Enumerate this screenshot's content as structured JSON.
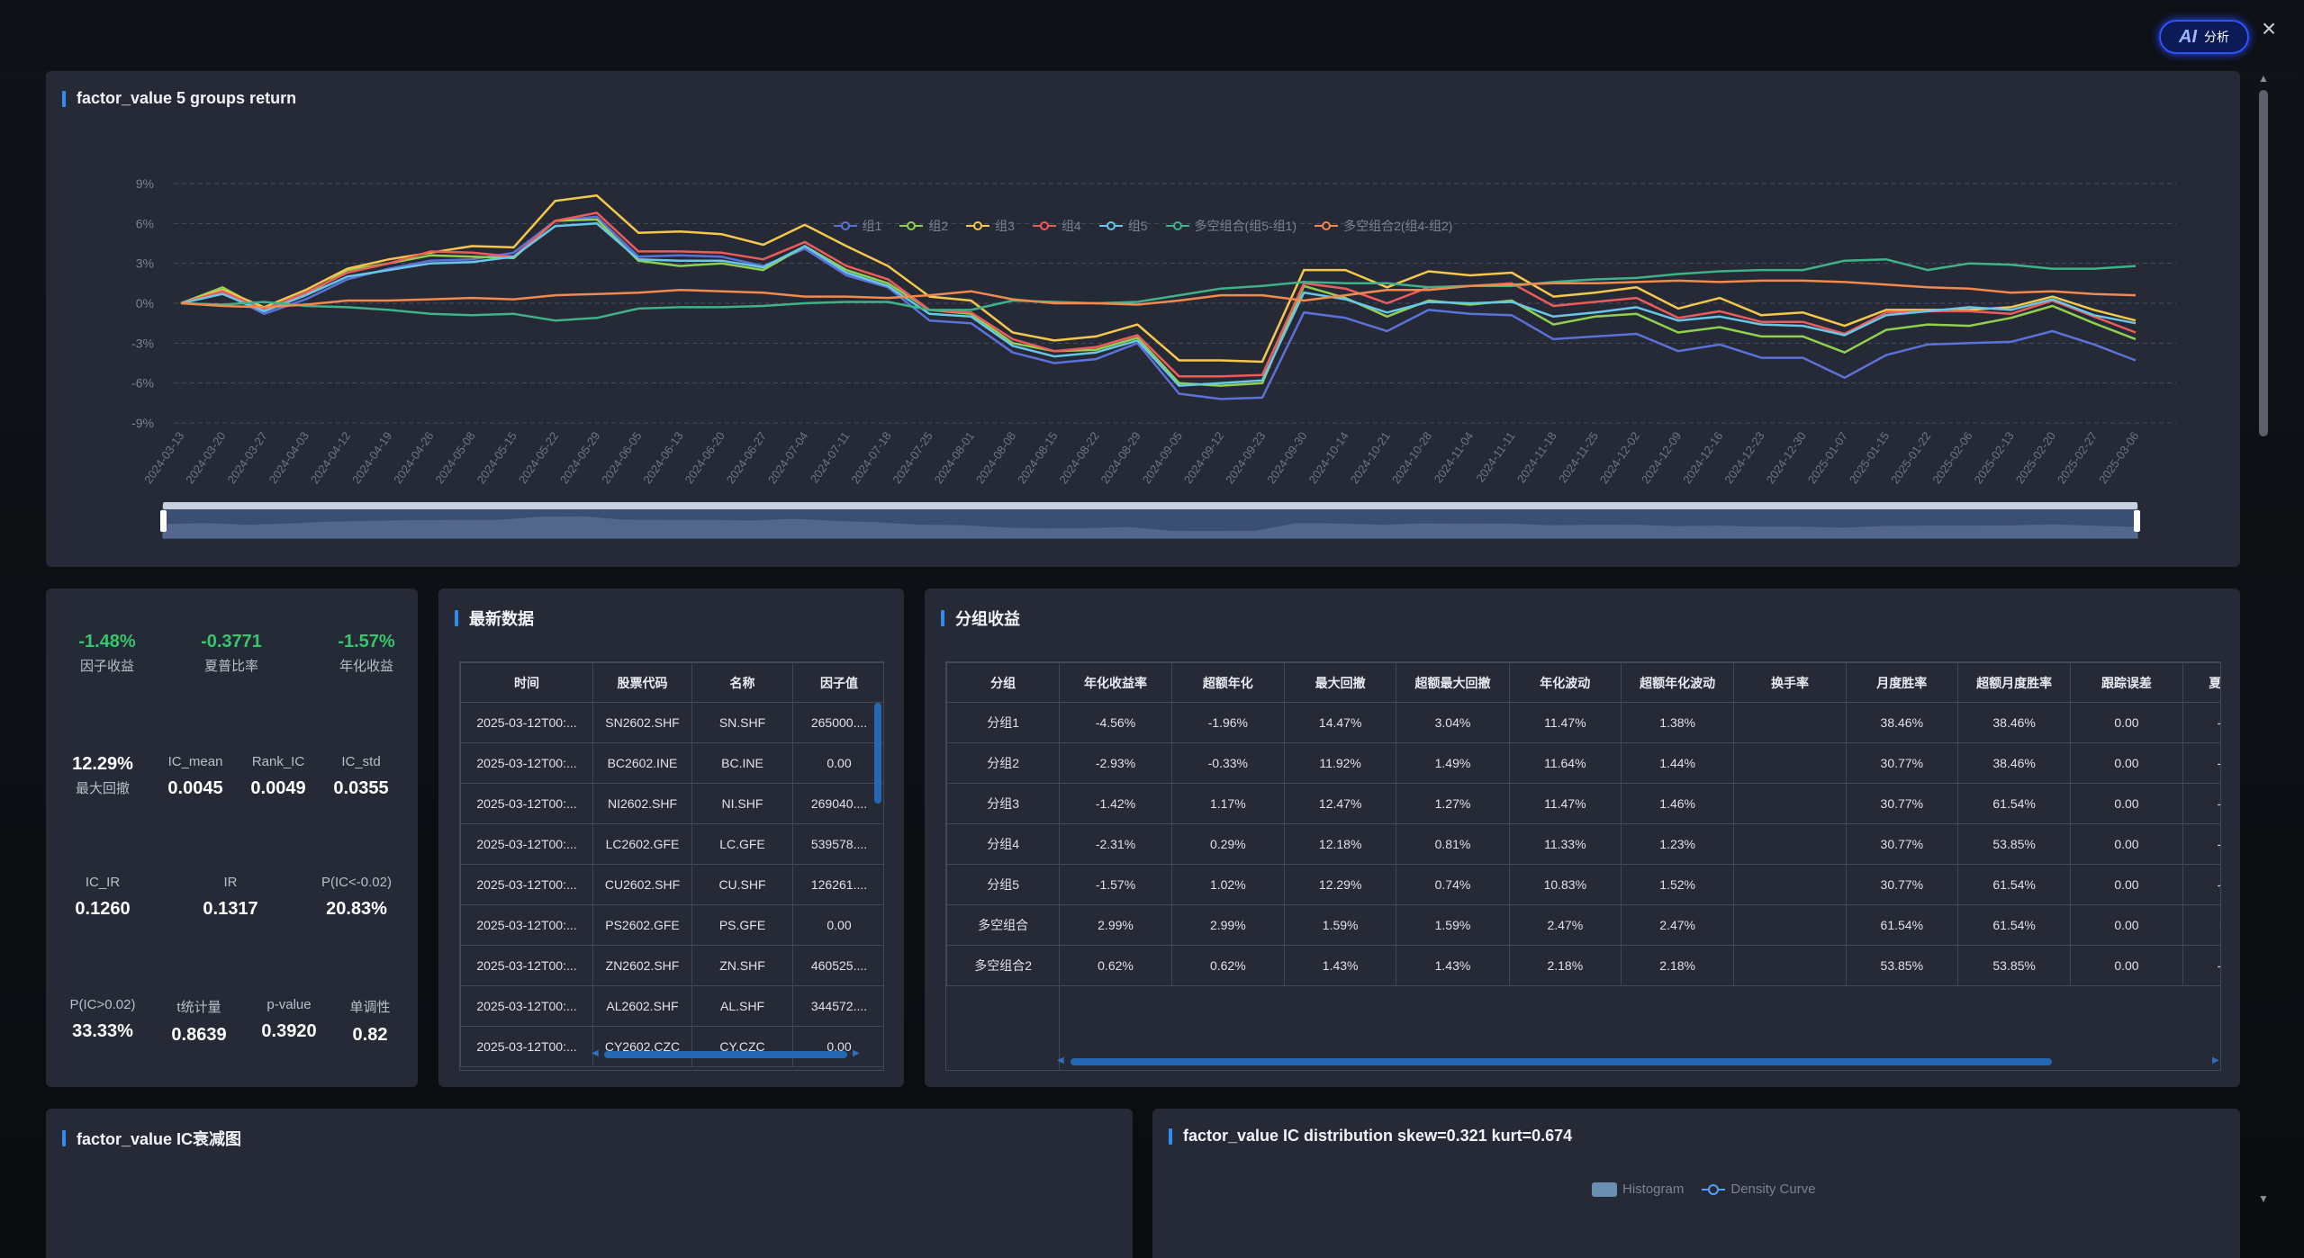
{
  "ai_button": {
    "logo": "AI",
    "label": "分析"
  },
  "close_icon": "×",
  "panels": {
    "group_return": {
      "title": "factor_value 5 groups return"
    },
    "latest": {
      "title": "最新数据"
    },
    "group_income": {
      "title": "分组收益"
    },
    "ic_decay": {
      "title": "factor_value IC衰减图"
    },
    "ic_dist": {
      "title": "factor_value IC distribution skew=0.321 kurt=0.674"
    }
  },
  "ic_dist_legend": {
    "histogram": "Histogram",
    "density": "Density Curve"
  },
  "stats": {
    "factor_return": {
      "value": "-1.48%",
      "label": "因子收益"
    },
    "sharpe": {
      "value": "-0.3771",
      "label": "夏普比率"
    },
    "annual": {
      "value": "-1.57%",
      "label": "年化收益"
    },
    "max_dd": {
      "value": "12.29%",
      "label": "最大回撤"
    },
    "ic_mean": {
      "label": "IC_mean",
      "value": "0.0045"
    },
    "rank_ic": {
      "label": "Rank_IC",
      "value": "0.0049"
    },
    "ic_std": {
      "label": "IC_std",
      "value": "0.0355"
    },
    "ic_ir": {
      "label": "IC_IR",
      "value": "0.1260"
    },
    "ir": {
      "label": "IR",
      "value": "0.1317"
    },
    "p_neg": {
      "label": "P(IC<-0.02)",
      "value": "20.83%"
    },
    "p_pos": {
      "label": "P(IC>0.02)",
      "value": "33.33%"
    },
    "t_stat": {
      "label": "t统计量",
      "value": "0.8639"
    },
    "p_value": {
      "label": "p-value",
      "value": "0.3920"
    },
    "monotonic": {
      "label": "单调性",
      "value": "0.82"
    }
  },
  "latest_table": {
    "headers": [
      "时间",
      "股票代码",
      "名称",
      "因子值"
    ],
    "rows": [
      [
        "2025-03-12T00:...",
        "SN2602.SHF",
        "SN.SHF",
        "265000...."
      ],
      [
        "2025-03-12T00:...",
        "BC2602.INE",
        "BC.INE",
        "0.00"
      ],
      [
        "2025-03-12T00:...",
        "NI2602.SHF",
        "NI.SHF",
        "269040...."
      ],
      [
        "2025-03-12T00:...",
        "LC2602.GFE",
        "LC.GFE",
        "539578...."
      ],
      [
        "2025-03-12T00:...",
        "CU2602.SHF",
        "CU.SHF",
        "126261...."
      ],
      [
        "2025-03-12T00:...",
        "PS2602.GFE",
        "PS.GFE",
        "0.00"
      ],
      [
        "2025-03-12T00:...",
        "ZN2602.SHF",
        "ZN.SHF",
        "460525...."
      ],
      [
        "2025-03-12T00:...",
        "AL2602.SHF",
        "AL.SHF",
        "344572...."
      ],
      [
        "2025-03-12T00:...",
        "CY2602.CZC",
        "CY.CZC",
        "0.00"
      ]
    ]
  },
  "group_table": {
    "headers": [
      "分组",
      "年化收益率",
      "超额年化",
      "最大回撤",
      "超额最大回撤",
      "年化波动",
      "超额年化波动",
      "换手率",
      "月度胜率",
      "超额月度胜率",
      "跟踪误差",
      "夏普"
    ],
    "rows": [
      [
        "分组1",
        "-4.56%",
        "-1.96%",
        "14.47%",
        "3.04%",
        "11.47%",
        "1.38%",
        "",
        "38.46%",
        "38.46%",
        "0.00",
        "-("
      ],
      [
        "分组2",
        "-2.93%",
        "-0.33%",
        "11.92%",
        "1.49%",
        "11.64%",
        "1.44%",
        "",
        "30.77%",
        "38.46%",
        "0.00",
        "-("
      ],
      [
        "分组3",
        "-1.42%",
        "1.17%",
        "12.47%",
        "1.27%",
        "11.47%",
        "1.46%",
        "",
        "30.77%",
        "61.54%",
        "0.00",
        "-("
      ],
      [
        "分组4",
        "-2.31%",
        "0.29%",
        "12.18%",
        "0.81%",
        "11.33%",
        "1.23%",
        "",
        "30.77%",
        "53.85%",
        "0.00",
        "-("
      ],
      [
        "分组5",
        "-1.57%",
        "1.02%",
        "12.29%",
        "0.74%",
        "10.83%",
        "1.52%",
        "",
        "30.77%",
        "61.54%",
        "0.00",
        "-("
      ],
      [
        "多空组合",
        "2.99%",
        "2.99%",
        "1.59%",
        "1.59%",
        "2.47%",
        "2.47%",
        "",
        "61.54%",
        "61.54%",
        "0.00",
        "("
      ],
      [
        "多空组合2",
        "0.62%",
        "0.62%",
        "1.43%",
        "1.43%",
        "2.18%",
        "2.18%",
        "",
        "53.85%",
        "53.85%",
        "0.00",
        "-("
      ]
    ]
  },
  "chart_data": {
    "type": "line",
    "title": "factor_value 5 groups return",
    "y_ticks": [
      "9%",
      "6%",
      "3%",
      "0%",
      "-3%",
      "-6%",
      "-9%"
    ],
    "ylim": [
      -9,
      9
    ],
    "grid": true,
    "legend_position": "top-center",
    "x": [
      "2024-03-13",
      "2024-03-20",
      "2024-03-27",
      "2024-04-03",
      "2024-04-12",
      "2024-04-19",
      "2024-04-26",
      "2024-05-08",
      "2024-05-15",
      "2024-05-22",
      "2024-05-29",
      "2024-06-05",
      "2024-06-13",
      "2024-06-20",
      "2024-06-27",
      "2024-07-04",
      "2024-07-11",
      "2024-07-18",
      "2024-07-25",
      "2024-08-01",
      "2024-08-08",
      "2024-08-15",
      "2024-08-22",
      "2024-08-29",
      "2024-09-05",
      "2024-09-12",
      "2024-09-23",
      "2024-09-30",
      "2024-10-14",
      "2024-10-21",
      "2024-10-28",
      "2024-11-04",
      "2024-11-11",
      "2024-11-18",
      "2024-11-25",
      "2024-12-02",
      "2024-12-09",
      "2024-12-16",
      "2024-12-23",
      "2024-12-30",
      "2025-01-07",
      "2025-01-15",
      "2025-01-22",
      "2025-02-06",
      "2025-02-13",
      "2025-02-20",
      "2025-02-27",
      "2025-03-06"
    ],
    "series": [
      {
        "name": "组1",
        "color": "#5b73d9",
        "values": [
          0,
          0.8,
          -0.8,
          0.3,
          1.8,
          2.6,
          3.2,
          3.3,
          3.8,
          6.2,
          6.5,
          3.5,
          3.6,
          3.5,
          2.8,
          4.1,
          2.1,
          1.2,
          -1.3,
          -1.5,
          -3.7,
          -4.5,
          -4.2,
          -3.0,
          -6.8,
          -7.2,
          -7.1,
          -0.7,
          -1.1,
          -2.1,
          -0.5,
          -0.8,
          -0.9,
          -2.7,
          -2.5,
          -2.3,
          -3.6,
          -3.1,
          -4.1,
          -4.1,
          -5.6,
          -3.9,
          -3.1,
          -3.0,
          -2.9,
          -2.1,
          -3.1,
          -4.3
        ]
      },
      {
        "name": "组2",
        "color": "#8fd14f",
        "values": [
          0,
          1.2,
          -0.5,
          0.6,
          2.5,
          3.0,
          3.6,
          3.5,
          3.4,
          6.2,
          6.3,
          3.2,
          2.8,
          3.0,
          2.5,
          4.3,
          2.5,
          1.5,
          -0.5,
          -0.8,
          -3.0,
          -3.6,
          -3.5,
          -2.6,
          -6.0,
          -6.2,
          -6.0,
          1.3,
          0.4,
          -1.0,
          0.2,
          -0.1,
          0.2,
          -1.6,
          -1.0,
          -0.8,
          -2.2,
          -1.8,
          -2.5,
          -2.5,
          -3.7,
          -2.0,
          -1.6,
          -1.7,
          -1.1,
          -0.2,
          -1.5,
          -2.7
        ]
      },
      {
        "name": "组3",
        "color": "#f5c84c",
        "values": [
          0,
          1.0,
          -0.3,
          1.0,
          2.6,
          3.3,
          3.8,
          4.3,
          4.2,
          7.7,
          8.1,
          5.3,
          5.4,
          5.2,
          4.4,
          5.9,
          4.3,
          2.8,
          0.5,
          0.2,
          -2.2,
          -2.8,
          -2.5,
          -1.6,
          -4.3,
          -4.3,
          -4.4,
          2.5,
          2.5,
          1.2,
          2.4,
          2.1,
          2.3,
          0.5,
          0.8,
          1.2,
          -0.4,
          0.4,
          -0.9,
          -0.7,
          -1.7,
          -0.5,
          -0.5,
          -0.5,
          -0.3,
          0.5,
          -0.5,
          -1.3
        ]
      },
      {
        "name": "组4",
        "color": "#ee5b5b",
        "values": [
          0,
          0.9,
          -0.5,
          0.8,
          2.3,
          3.0,
          3.9,
          3.8,
          3.5,
          6.2,
          6.8,
          3.9,
          3.9,
          3.8,
          3.3,
          4.6,
          2.8,
          1.8,
          -0.5,
          -0.7,
          -2.7,
          -3.6,
          -3.3,
          -2.4,
          -5.5,
          -5.5,
          -5.4,
          1.5,
          1.1,
          0.0,
          1.2,
          1.3,
          1.5,
          -0.2,
          0.1,
          0.4,
          -1.1,
          -0.6,
          -1.4,
          -1.4,
          -2.3,
          -0.7,
          -0.6,
          -0.6,
          -0.8,
          0.2,
          -1.0,
          -2.2
        ]
      },
      {
        "name": "组5",
        "color": "#68c7e8",
        "values": [
          0,
          0.7,
          -0.6,
          0.6,
          2.0,
          2.5,
          3.0,
          3.1,
          3.5,
          5.8,
          6.0,
          3.3,
          3.2,
          3.2,
          2.7,
          4.3,
          2.3,
          1.3,
          -0.8,
          -1.0,
          -3.2,
          -4.0,
          -3.7,
          -2.8,
          -6.2,
          -6.0,
          -5.8,
          0.8,
          0.3,
          -0.7,
          0.1,
          0.0,
          0.1,
          -1.0,
          -0.7,
          -0.3,
          -1.3,
          -1.0,
          -1.6,
          -1.7,
          -2.4,
          -0.9,
          -0.6,
          -0.3,
          -0.5,
          0.3,
          -0.9,
          -1.5
        ]
      },
      {
        "name": "多空组合(组5-组1)",
        "color": "#3fb28a",
        "values": [
          0,
          -0.1,
          0.1,
          -0.2,
          -0.3,
          -0.5,
          -0.8,
          -0.9,
          -0.8,
          -1.3,
          -1.1,
          -0.4,
          -0.3,
          -0.3,
          -0.2,
          0.0,
          0.1,
          0.1,
          -0.5,
          -0.5,
          0.2,
          0.1,
          0.0,
          0.1,
          0.6,
          1.1,
          1.3,
          1.6,
          1.5,
          1.5,
          1.2,
          1.3,
          1.3,
          1.6,
          1.8,
          1.9,
          2.2,
          2.4,
          2.5,
          2.5,
          3.2,
          3.3,
          2.5,
          3.0,
          2.9,
          2.6,
          2.6,
          2.8
        ]
      },
      {
        "name": "多空组合2(组4-组2)",
        "color": "#f08a4e",
        "values": [
          0,
          -0.2,
          -0.3,
          -0.1,
          0.2,
          0.2,
          0.3,
          0.4,
          0.3,
          0.6,
          0.7,
          0.8,
          1.0,
          0.9,
          0.8,
          0.5,
          0.5,
          0.4,
          0.6,
          0.9,
          0.3,
          0.0,
          0.0,
          -0.1,
          0.2,
          0.6,
          0.6,
          0.2,
          0.6,
          1.0,
          1.0,
          1.3,
          1.4,
          1.5,
          1.5,
          1.6,
          1.7,
          1.6,
          1.7,
          1.7,
          1.6,
          1.4,
          1.2,
          1.1,
          0.8,
          0.9,
          0.7,
          0.6
        ]
      }
    ]
  }
}
